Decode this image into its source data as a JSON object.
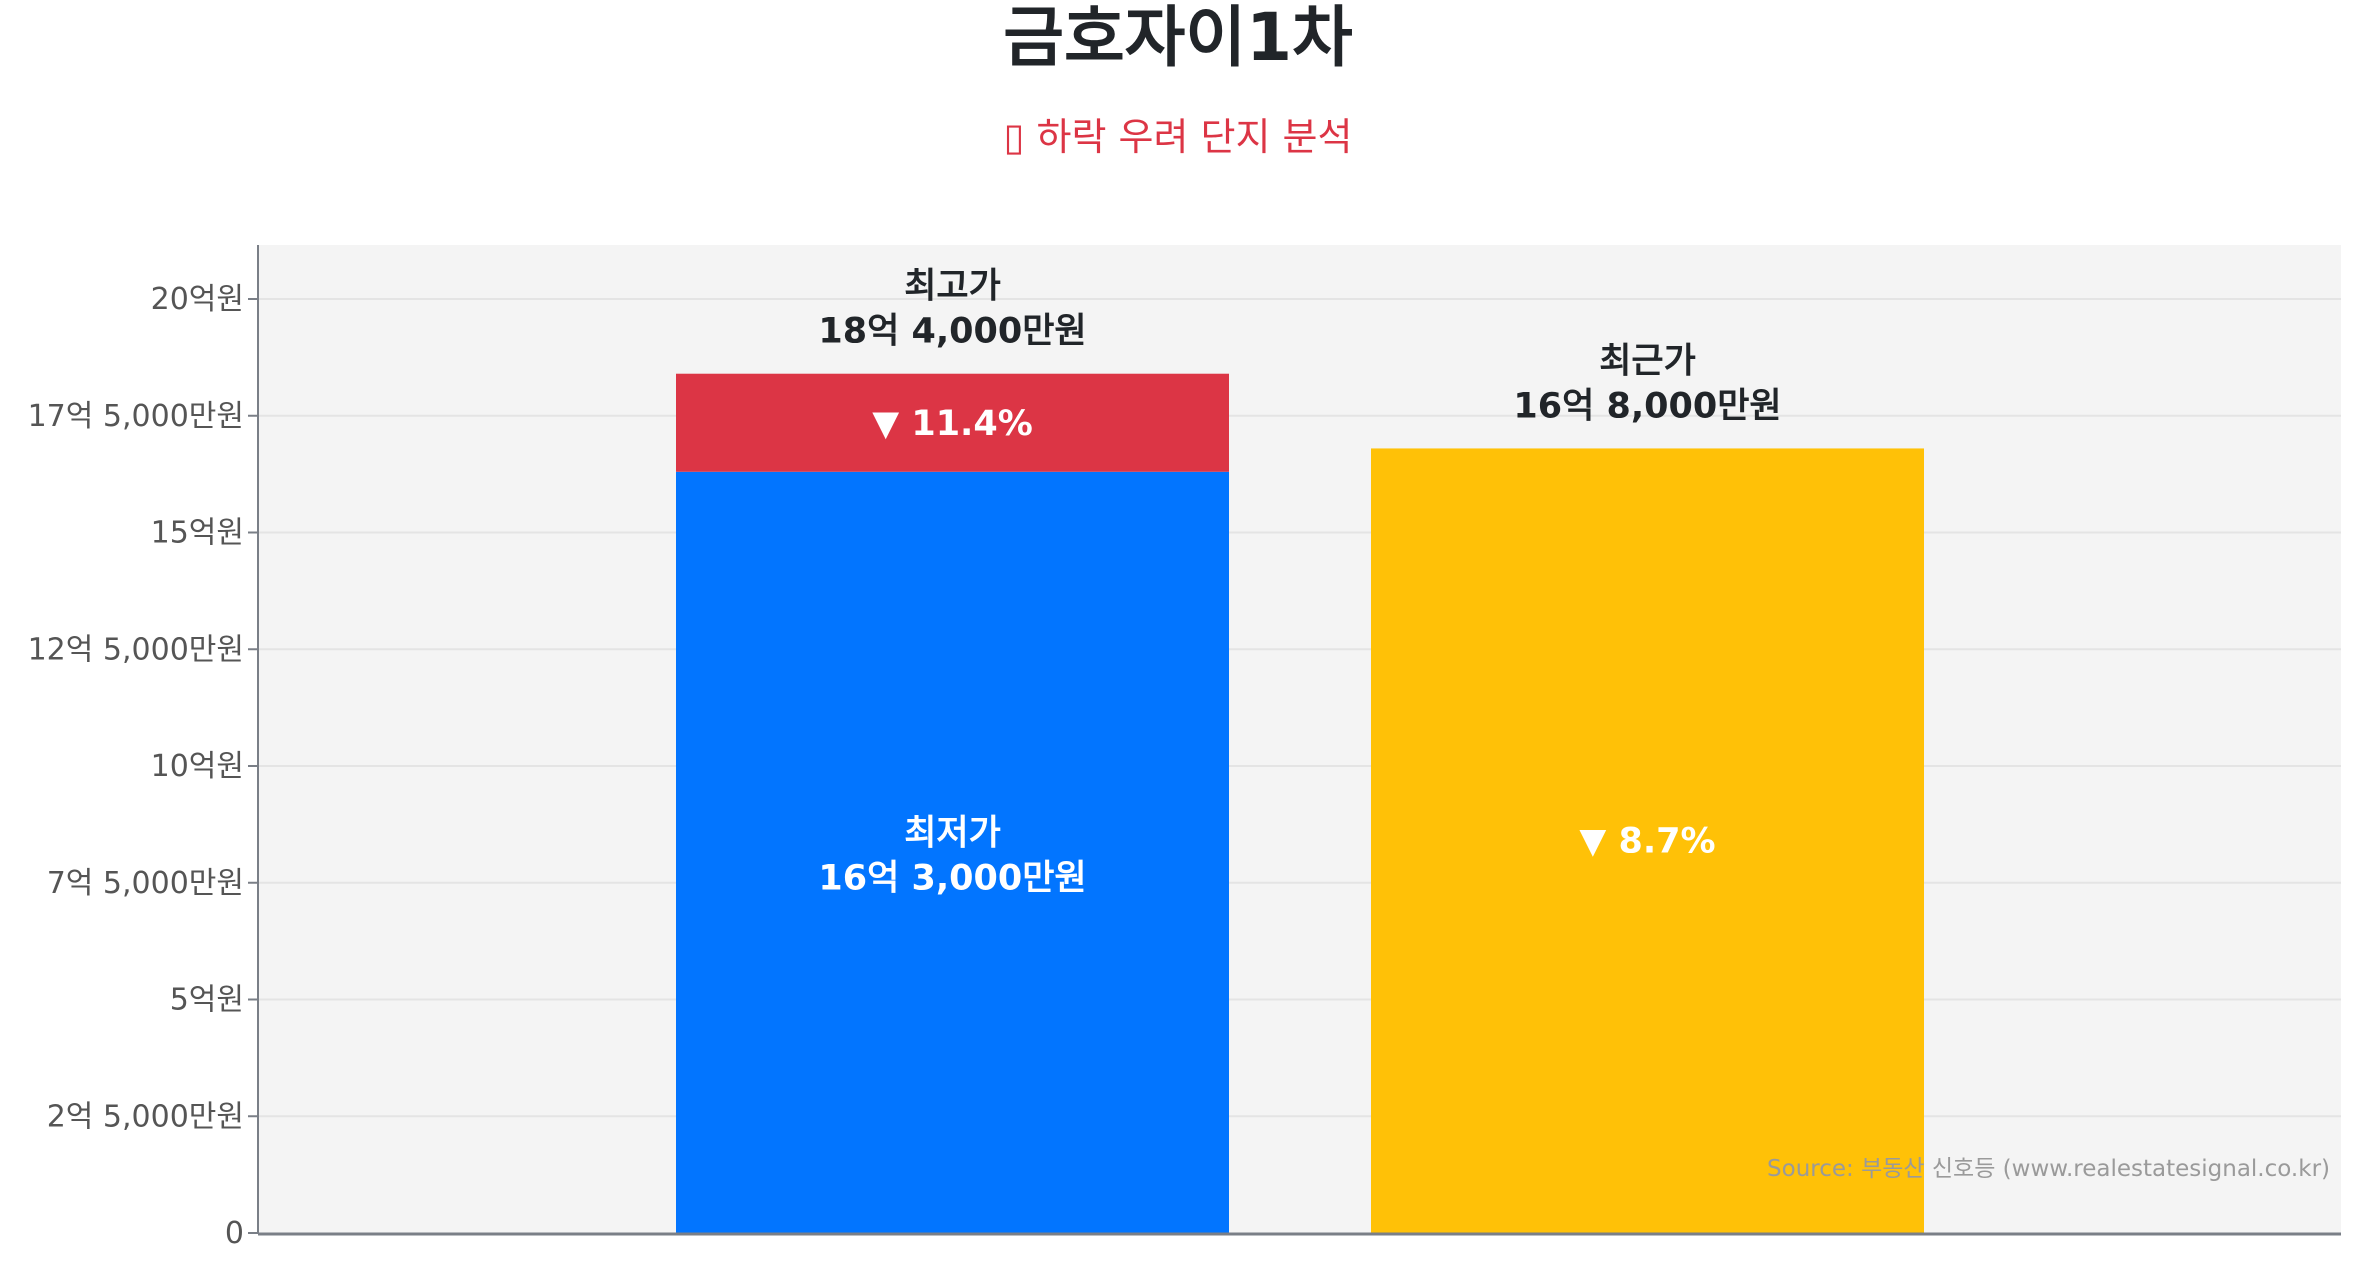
{
  "chart_data": {
    "type": "bar",
    "title": "금호자이1차",
    "subtitle": "▯ 하락 우려 단지 분석",
    "source": "Source: 부동산 신호등 (www.realestatesignal.co.kr)",
    "unit": "억원",
    "ylim": [
      0,
      21
    ],
    "grid": true,
    "yticks": [
      {
        "value": 0,
        "label": "0"
      },
      {
        "value": 2.5,
        "label": "2억 5,000만원"
      },
      {
        "value": 5,
        "label": "5억원"
      },
      {
        "value": 7.5,
        "label": "7억 5,000만원"
      },
      {
        "value": 10,
        "label": "10억원"
      },
      {
        "value": 12.5,
        "label": "12억 5,000만원"
      },
      {
        "value": 15,
        "label": "15억원"
      },
      {
        "value": 17.5,
        "label": "17억 5,000만원"
      },
      {
        "value": 20,
        "label": "20억원"
      }
    ],
    "bars": [
      {
        "low": {
          "name": "최저가",
          "value": 16.3,
          "value_label": "16억 3,000만원",
          "color": "#0275ff"
        },
        "high": {
          "name": "최고가",
          "value": 18.4,
          "value_label": "18억 4,000만원",
          "color": "#dc3545"
        },
        "change_label": "▼ 11.4%"
      },
      {
        "single": {
          "name": "최근가",
          "value": 16.8,
          "value_label": "16억 8,000만원",
          "color": "#ffc107"
        },
        "change_label": "▼ 8.7%"
      }
    ],
    "colors": {
      "plot_bg": "#f4f4f4",
      "grid": "#e4e4e4",
      "axis": "#7a7f87"
    }
  }
}
